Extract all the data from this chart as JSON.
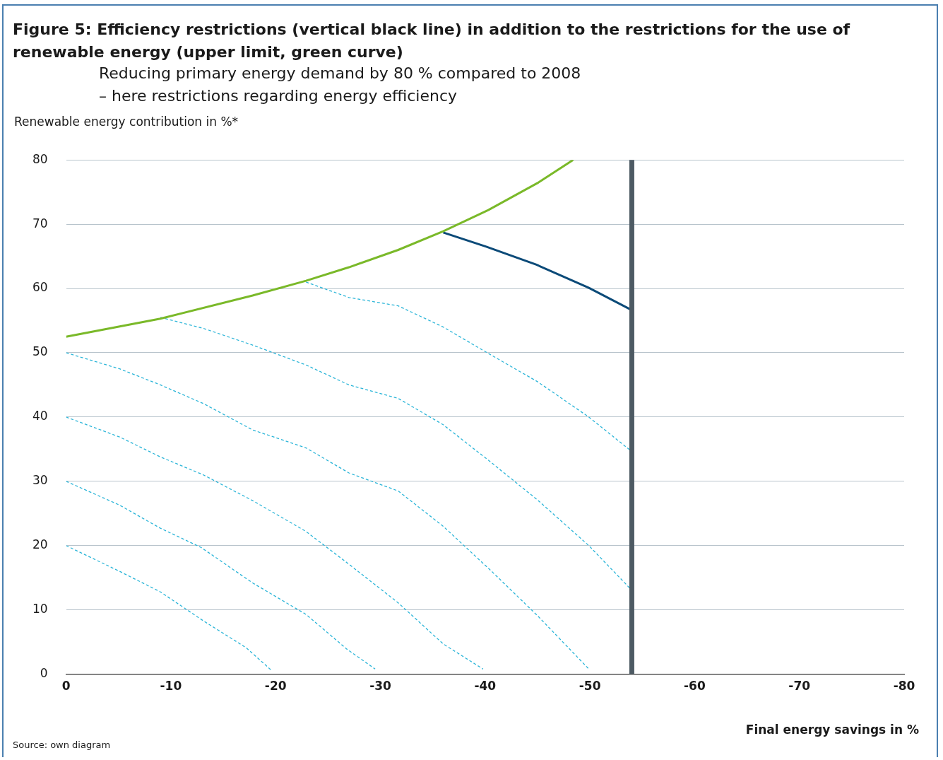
{
  "chart_data": {
    "type": "line",
    "title": "Figure 5:  Efficiency restrictions (vertical black line) in addition to the restrictions for the use of renewable energy (upper limit, green curve)",
    "subtitle": "Reducing primary energy demand by 80 % compared to 2008\n– here restrictions regarding energy efficiency",
    "ylabel": "Renewable energy contribution in %*",
    "xlabel": "Final energy savings in %",
    "annotations": [
      "Source: own diagram"
    ],
    "xlim": [
      0,
      -80
    ],
    "xticks": [
      0,
      -10,
      -20,
      -30,
      -40,
      -50,
      -60,
      -70,
      -80
    ],
    "ylim": [
      0,
      80
    ],
    "yticks": [
      0,
      10,
      20,
      30,
      40,
      50,
      60,
      70,
      80
    ],
    "grid": "y",
    "legend": false,
    "marker": "none",
    "ref_lines": [
      {
        "axis": "x",
        "value": -54,
        "color": "#4d5a63"
      }
    ],
    "series": [
      {
        "color": "#7ab929",
        "line_style": "solid",
        "x": [
          0,
          -9,
          -17.8,
          -22.9,
          -27,
          -31.7,
          -36,
          -40.3,
          -45,
          -48.4
        ],
        "values": [
          52.5,
          55.3,
          58.9,
          61.2,
          63.3,
          66,
          68.9,
          72.2,
          76.4,
          80
        ]
      },
      {
        "color": "#0b4a78",
        "line_style": "solid",
        "x": [
          -36,
          -40.1,
          -44.9,
          -49.9,
          -53.8
        ],
        "values": [
          68.7,
          66.5,
          63.7,
          60.1,
          56.8
        ]
      },
      {
        "color": "#2bb5d8",
        "line_style": "dashed",
        "x": [
          0,
          -5.1,
          -9,
          -13.1,
          -17.2,
          -19.6
        ],
        "values": [
          20,
          16,
          12.8,
          8.3,
          4.1,
          0.6
        ]
      },
      {
        "color": "#2bb5d8",
        "line_style": "dashed",
        "x": [
          0,
          -5.1,
          -9,
          -12.9,
          -17.8,
          -22.9,
          -26.8,
          -29.5
        ],
        "values": [
          30,
          26.3,
          22.7,
          19.7,
          14.2,
          9.3,
          3.9,
          0.8
        ]
      },
      {
        "color": "#2bb5d8",
        "line_style": "dashed",
        "x": [
          0,
          -5.1,
          -9,
          -13.1,
          -17.8,
          -22.9,
          -27,
          -31.7,
          -36,
          -39.8
        ],
        "values": [
          40,
          36.9,
          33.8,
          31,
          27,
          22.2,
          17.1,
          11.1,
          4.7,
          0.8
        ]
      },
      {
        "color": "#2bb5d8",
        "line_style": "dashed",
        "x": [
          0,
          -5.1,
          -9,
          -13.1,
          -17.8,
          -22.9,
          -27,
          -31.7,
          -36,
          -40.3,
          -45,
          -49.9
        ],
        "values": [
          50,
          47.5,
          45,
          42.1,
          38,
          35.2,
          31.3,
          28.5,
          23,
          16.5,
          9.1,
          0.8
        ]
      },
      {
        "color": "#2bb5d8",
        "line_style": "dashed",
        "x": [
          -9,
          -13.1,
          -17.8,
          -22.9,
          -27,
          -31.7,
          -36,
          -40.3,
          -45,
          -49.9,
          -53.8
        ],
        "values": [
          55.5,
          53.8,
          51.2,
          48.1,
          45,
          42.9,
          38.8,
          33.3,
          27.1,
          20,
          13.4
        ]
      },
      {
        "color": "#2bb5d8",
        "line_style": "dashed",
        "x": [
          -22.9,
          -27,
          -31.7,
          -36,
          -40.3,
          -45,
          -49.9,
          -53.8
        ],
        "values": [
          61,
          58.6,
          57.3,
          54,
          49.9,
          45.5,
          40,
          34.9
        ]
      }
    ]
  }
}
